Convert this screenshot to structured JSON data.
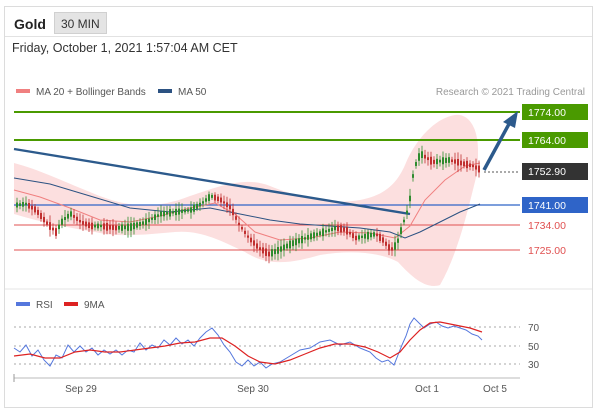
{
  "header": {
    "instrument": "Gold",
    "interval": "30 MIN"
  },
  "datetime": "Friday, October 1, 2021 1:57:04 AM CET",
  "legend": {
    "items": [
      {
        "label": "MA 20 + Bollinger Bands",
        "color": "#f08080"
      },
      {
        "label": "MA 50",
        "color": "#2c5282"
      }
    ],
    "copyright": "Research © 2021 Trading Central"
  },
  "levels": {
    "resistance": [
      "1774.00",
      "1764.00"
    ],
    "current": "1752.90",
    "pivot": "1741.00",
    "support": [
      "1734.00",
      "1725.00"
    ]
  },
  "colors": {
    "resistance": "#4a9a00",
    "pivot": "#2f64c8",
    "support": "#e05050",
    "current": "#333333",
    "trend": "#2c5a8c",
    "up_candle": "#2e8b2e",
    "down_candle": "#c03030",
    "bollinger_fill": "#fcdcdc",
    "rsi": "#5577dd",
    "ma9": "#dd2222"
  },
  "rsi_legend": [
    {
      "label": "RSI",
      "color": "#5577dd"
    },
    {
      "label": "9MA",
      "color": "#dd2222"
    }
  ],
  "rsi_levels": [
    "70",
    "50",
    "30"
  ],
  "x_axis": [
    "Sep 29",
    "Sep 30",
    "Oct 1",
    "Oct 5"
  ]
}
